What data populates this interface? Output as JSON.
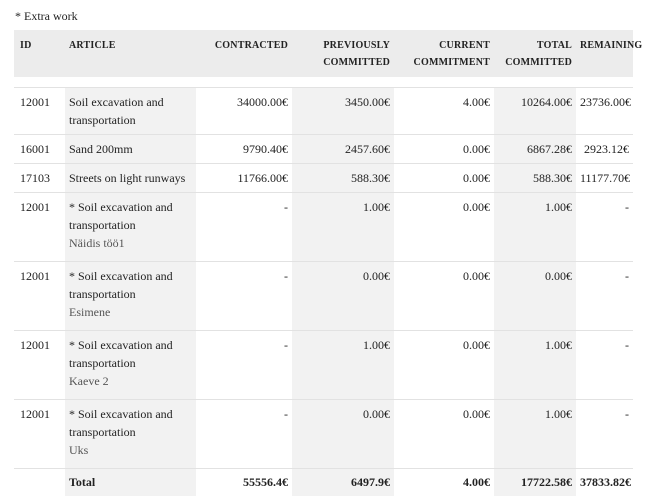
{
  "note": "* Extra work",
  "columns": {
    "id": "ID",
    "article": "ARTICLE",
    "contracted": "CONTRACTED",
    "previously_1": "PREVIOUSLY",
    "previously_2": "COMMITTED",
    "current_1": "CURRENT",
    "current_2": "COMMITMENT",
    "total_1": "TOTAL",
    "total_2": "COMMITTED",
    "remaining": "REMAINING"
  },
  "rows": [
    {
      "id": "12001",
      "article": "Soil excavation and transportation",
      "sub": "",
      "contracted": "34000.00€",
      "previously": "3450.00€",
      "current": "4.00€",
      "total": "10264.00€",
      "remaining": "23736.00€"
    },
    {
      "id": "16001",
      "article": "Sand 200mm",
      "sub": "",
      "contracted": "9790.40€",
      "previously": "2457.60€",
      "current": "0.00€",
      "total": "6867.28€",
      "remaining": "2923.12€"
    },
    {
      "id": "17103",
      "article": "Streets on light runways",
      "sub": "",
      "contracted": "11766.00€",
      "previously": "588.30€",
      "current": "0.00€",
      "total": "588.30€",
      "remaining": "11177.70€"
    },
    {
      "id": "12001",
      "article": "* Soil excavation and transportation",
      "sub": "Näidis töö1",
      "contracted": "-",
      "previously": "1.00€",
      "current": "0.00€",
      "total": "1.00€",
      "remaining": "-"
    },
    {
      "id": "12001",
      "article": "* Soil excavation and transportation",
      "sub": "Esimene",
      "contracted": "-",
      "previously": "0.00€",
      "current": "0.00€",
      "total": "0.00€",
      "remaining": "-"
    },
    {
      "id": "12001",
      "article": "* Soil excavation and transportation",
      "sub": "Kaeve 2",
      "contracted": "-",
      "previously": "1.00€",
      "current": "0.00€",
      "total": "1.00€",
      "remaining": "-"
    },
    {
      "id": "12001",
      "article": "* Soil excavation and transportation",
      "sub": "Uks",
      "contracted": "-",
      "previously": "0.00€",
      "current": "0.00€",
      "total": "1.00€",
      "remaining": "-"
    }
  ],
  "totals": {
    "label": "Total",
    "contracted": "55556.4€",
    "previously": "6497.9€",
    "current": "4.00€",
    "total": "17722.58€",
    "remaining": "37833.82€"
  }
}
